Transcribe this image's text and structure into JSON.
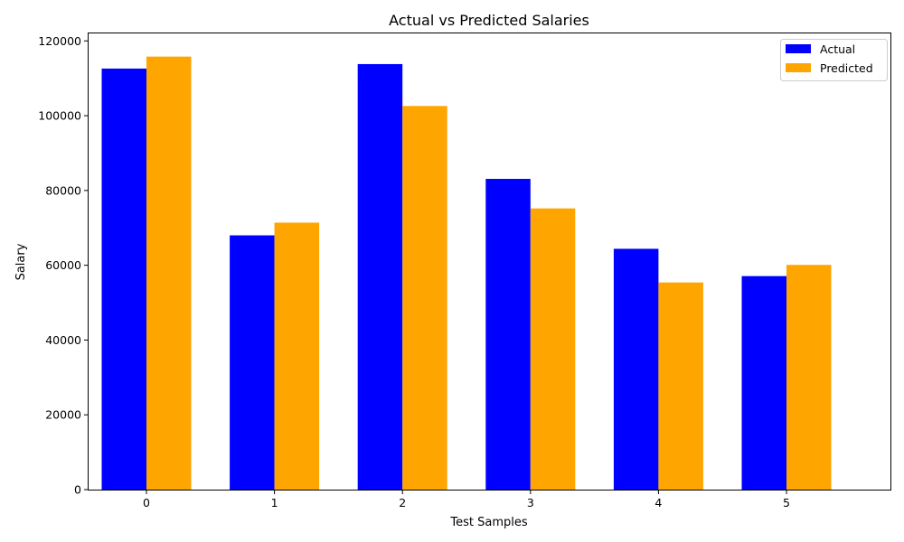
{
  "chart_data": {
    "type": "bar",
    "title": "Actual vs Predicted Salaries",
    "xlabel": "Test Samples",
    "ylabel": "Salary",
    "categories": [
      "0",
      "1",
      "2",
      "3",
      "4",
      "5"
    ],
    "series": [
      {
        "name": "Actual",
        "color": "#0000ff",
        "values": [
          112600,
          68000,
          113800,
          83100,
          64400,
          57100
        ]
      },
      {
        "name": "Predicted",
        "color": "#ffa500",
        "values": [
          115800,
          71400,
          102600,
          75200,
          55400,
          60100
        ]
      }
    ],
    "ylim": [
      0,
      122000
    ],
    "yticks": [
      0,
      20000,
      40000,
      60000,
      80000,
      100000,
      120000
    ],
    "grid": false,
    "legend": "top-right"
  }
}
